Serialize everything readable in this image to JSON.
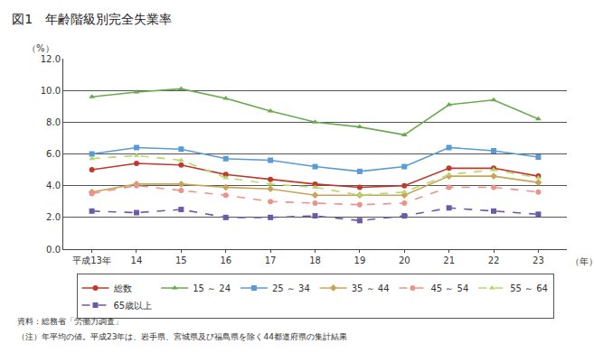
{
  "chart_data": {
    "type": "line",
    "title": "図1　年齢階級別完全失業率",
    "ylabel": "（%）",
    "xlabel": "（年）",
    "categories": [
      "平成13年",
      "14",
      "15",
      "16",
      "17",
      "18",
      "19",
      "20",
      "21",
      "22",
      "23"
    ],
    "series": [
      {
        "name": "総数",
        "color": "#c0392b",
        "marker": "circle",
        "line_style": "solid",
        "values": [
          5.0,
          5.4,
          5.3,
          4.7,
          4.4,
          4.1,
          3.9,
          4.0,
          5.1,
          5.1,
          4.6
        ]
      },
      {
        "name": "15 ～ 24",
        "color": "#6aaa4f",
        "marker": "triangle-up",
        "line_style": "solid",
        "values": [
          9.6,
          9.9,
          10.1,
          9.5,
          8.7,
          8.0,
          7.7,
          7.2,
          9.1,
          9.4,
          8.2
        ]
      },
      {
        "name": "25 ～ 34",
        "color": "#5b9bd5",
        "marker": "square",
        "line_style": "solid",
        "values": [
          6.0,
          6.4,
          6.3,
          5.7,
          5.6,
          5.2,
          4.9,
          5.2,
          6.4,
          6.2,
          5.8
        ]
      },
      {
        "name": "35 ～ 44",
        "color": "#c8a45a",
        "marker": "diamond",
        "line_style": "solid",
        "values": [
          3.6,
          4.1,
          4.1,
          3.9,
          3.8,
          3.4,
          3.4,
          3.4,
          4.6,
          4.6,
          4.2
        ]
      },
      {
        "name": "45 ～ 54",
        "color": "#e8948a",
        "marker": "circle",
        "line_style": "dash",
        "values": [
          3.5,
          4.0,
          3.7,
          3.4,
          3.0,
          2.9,
          2.8,
          2.9,
          3.9,
          3.9,
          3.6
        ]
      },
      {
        "name": "55 ～ 64",
        "color": "#b5d86a",
        "marker": "triangle-up",
        "line_style": "dash",
        "values": [
          5.7,
          5.9,
          5.6,
          4.5,
          4.1,
          3.9,
          3.4,
          3.6,
          4.7,
          5.0,
          4.5
        ]
      },
      {
        "name": "65歳以上",
        "color": "#6a5aa8",
        "marker": "square",
        "line_style": "dash",
        "values": [
          2.4,
          2.3,
          2.5,
          2.0,
          2.0,
          2.1,
          1.8,
          2.1,
          2.6,
          2.4,
          2.2
        ]
      }
    ],
    "ylim": [
      0,
      12
    ],
    "yticks": [
      {
        "value": 0,
        "label": "0.0"
      },
      {
        "value": 2,
        "label": "2.0"
      },
      {
        "value": 4,
        "label": "4.0"
      },
      {
        "value": 6,
        "label": "6.0"
      },
      {
        "value": 8,
        "label": "8.0"
      },
      {
        "value": 10,
        "label": "10.0"
      },
      {
        "value": 12,
        "label": "12.0"
      }
    ],
    "grid": true,
    "legend": "bottom",
    "annotations": [
      "資料：総務省「労働力調査」",
      "（注）年平均の値。平成23年は、岩手県、宮城県及び福島県を除く44都道府県の集計結果"
    ]
  }
}
